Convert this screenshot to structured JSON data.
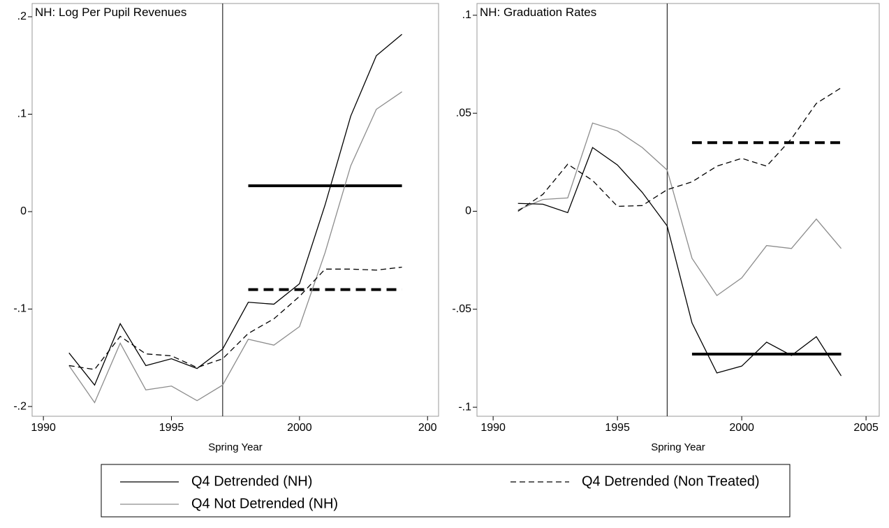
{
  "chart_data": [
    {
      "type": "line",
      "title": "NH: Log Per Pupil Revenues",
      "xlabel": "Spring Year",
      "x": [
        1991,
        1992,
        1993,
        1994,
        1995,
        1996,
        1997,
        1998,
        1999,
        2000,
        2001,
        2002,
        2003,
        2004
      ],
      "xlim": [
        1989.56,
        2005.43
      ],
      "xticks": [
        1990,
        1995,
        2000,
        {
          "value": 2005,
          "label": "200"
        }
      ],
      "ylim": [
        -0.21,
        0.2136
      ],
      "yticks": [
        {
          "value": 0.2,
          "label": ".2"
        },
        {
          "value": 0.1,
          "label": ".1"
        },
        0,
        {
          "value": -0.1,
          "label": "-.1"
        },
        {
          "value": -0.2,
          "label": "-.2"
        }
      ],
      "vline": 1997,
      "series": [
        {
          "name": "Q4 Detrended (NH)",
          "color": "#000000",
          "dash": "solid",
          "values": [
            -0.145,
            -0.178,
            -0.115,
            -0.158,
            -0.151,
            -0.161,
            -0.141,
            -0.093,
            -0.095,
            -0.074,
            0.007,
            0.098,
            0.16,
            0.182
          ]
        },
        {
          "name": "Q4 Detrended (Non Treated)",
          "color": "#000000",
          "dash": "dash",
          "values": [
            -0.158,
            -0.162,
            -0.128,
            -0.146,
            -0.148,
            -0.16,
            -0.151,
            -0.125,
            -0.11,
            -0.087,
            -0.059,
            -0.059,
            -0.06,
            -0.057
          ]
        },
        {
          "name": "Q4 Not Detrended (NH)",
          "color": "#8c8c8c",
          "dash": "solid",
          "values": [
            -0.158,
            -0.196,
            -0.135,
            -0.183,
            -0.179,
            -0.194,
            -0.178,
            -0.131,
            -0.137,
            -0.118,
            -0.042,
            0.047,
            0.105,
            0.123
          ]
        }
      ],
      "hlines": [
        {
          "value": 0.0265,
          "from": 1998,
          "to": 2004,
          "dash": "solid"
        },
        {
          "value": -0.08,
          "from": 1998,
          "to": 2004,
          "dash": "dash"
        }
      ]
    },
    {
      "type": "line",
      "title": "NH: Graduation Rates",
      "xlabel": "Spring Year",
      "x": [
        1991,
        1992,
        1993,
        1994,
        1995,
        1996,
        1997,
        1998,
        1999,
        2000,
        2001,
        2002,
        2003,
        2004
      ],
      "xlim": [
        1989.35,
        2005.53
      ],
      "xticks": [
        1990,
        1995,
        2000,
        2005
      ],
      "ylim": [
        -0.1046,
        0.106
      ],
      "yticks": [
        {
          "value": 0.1,
          "label": ".1"
        },
        {
          "value": 0.05,
          "label": ".05"
        },
        0,
        {
          "value": -0.05,
          "label": "-.05"
        },
        {
          "value": -0.1,
          "label": "-.1"
        }
      ],
      "vline": 1997,
      "series": [
        {
          "color": "#000000",
          "dash": "solid",
          "values": [
            0.004,
            0.0036,
            -0.0007,
            0.0325,
            0.0236,
            0.0096,
            -0.0075,
            -0.057,
            -0.0825,
            -0.079,
            -0.0668,
            -0.0736,
            -0.064,
            -0.084
          ]
        },
        {
          "color": "#000000",
          "dash": "dash",
          "values": [
            0,
            0.0086,
            0.024,
            0.0157,
            0.0025,
            0.0029,
            0.011,
            0.015,
            0.023,
            0.027,
            0.023,
            0.037,
            0.055,
            0.063
          ]
        },
        {
          "color": "#8c8c8c",
          "dash": "solid",
          "values": [
            0.0007,
            0.006,
            0.0068,
            0.045,
            0.041,
            0.0325,
            0.021,
            -0.024,
            -0.043,
            -0.034,
            -0.0175,
            -0.019,
            -0.004,
            -0.019
          ]
        }
      ],
      "hlines": [
        {
          "value": 0.035,
          "from": 1998,
          "to": 2004,
          "dash": "dash"
        },
        {
          "value": -0.0729,
          "from": 1998,
          "to": 2004,
          "dash": "solid"
        }
      ]
    }
  ]
}
